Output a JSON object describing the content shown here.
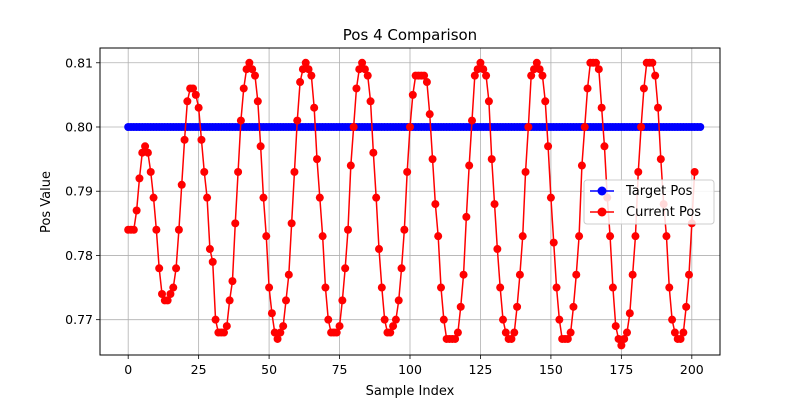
{
  "chart_data": {
    "type": "line",
    "title": "Pos 4 Comparison",
    "xlabel": "Sample Index",
    "ylabel": "Pos Value",
    "xlim": [
      -10,
      210
    ],
    "ylim": [
      0.7645,
      0.8123
    ],
    "x_ticks": [
      0,
      25,
      50,
      75,
      100,
      125,
      150,
      175,
      200
    ],
    "y_ticks": [
      0.77,
      0.78,
      0.79,
      0.8,
      0.81
    ],
    "y_tick_labels": [
      "0.77",
      "0.78",
      "0.79",
      "0.80",
      "0.81"
    ],
    "grid": true,
    "legend_position": "center-right",
    "x_count": 200,
    "series": [
      {
        "name": "Target Pos",
        "color": "#0000ff",
        "marker": "circle",
        "values": [
          0.8,
          0.8,
          0.8,
          0.8,
          0.8,
          0.8,
          0.8,
          0.8,
          0.8,
          0.8,
          0.8,
          0.8,
          0.8,
          0.8,
          0.8,
          0.8,
          0.8,
          0.8,
          0.8,
          0.8,
          0.8,
          0.8,
          0.8,
          0.8,
          0.8,
          0.8,
          0.8,
          0.8,
          0.8,
          0.8,
          0.8,
          0.8,
          0.8,
          0.8,
          0.8,
          0.8,
          0.8,
          0.8,
          0.8,
          0.8,
          0.8,
          0.8,
          0.8,
          0.8,
          0.8,
          0.8,
          0.8,
          0.8,
          0.8,
          0.8,
          0.8,
          0.8,
          0.8,
          0.8,
          0.8,
          0.8,
          0.8,
          0.8,
          0.8,
          0.8,
          0.8,
          0.8,
          0.8,
          0.8,
          0.8,
          0.8,
          0.8,
          0.8,
          0.8,
          0.8,
          0.8,
          0.8,
          0.8,
          0.8,
          0.8,
          0.8,
          0.8,
          0.8,
          0.8,
          0.8,
          0.8,
          0.8,
          0.8,
          0.8,
          0.8,
          0.8,
          0.8,
          0.8,
          0.8,
          0.8,
          0.8,
          0.8,
          0.8,
          0.8,
          0.8,
          0.8,
          0.8,
          0.8,
          0.8,
          0.8,
          0.8,
          0.8,
          0.8,
          0.8,
          0.8,
          0.8,
          0.8,
          0.8,
          0.8,
          0.8,
          0.8,
          0.8,
          0.8,
          0.8,
          0.8,
          0.8,
          0.8,
          0.8,
          0.8,
          0.8,
          0.8,
          0.8,
          0.8,
          0.8,
          0.8,
          0.8,
          0.8,
          0.8,
          0.8,
          0.8,
          0.8,
          0.8,
          0.8,
          0.8,
          0.8,
          0.8,
          0.8,
          0.8,
          0.8,
          0.8,
          0.8,
          0.8,
          0.8,
          0.8,
          0.8,
          0.8,
          0.8,
          0.8,
          0.8,
          0.8,
          0.8,
          0.8,
          0.8,
          0.8,
          0.8,
          0.8,
          0.8,
          0.8,
          0.8,
          0.8,
          0.8,
          0.8,
          0.8,
          0.8,
          0.8,
          0.8,
          0.8,
          0.8,
          0.8,
          0.8,
          0.8,
          0.8,
          0.8,
          0.8,
          0.8,
          0.8,
          0.8,
          0.8,
          0.8,
          0.8,
          0.8,
          0.8,
          0.8,
          0.8,
          0.8,
          0.8,
          0.8,
          0.8,
          0.8,
          0.8,
          0.8,
          0.8,
          0.8,
          0.8,
          0.8,
          0.8,
          0.8,
          0.8,
          0.8,
          0.8,
          0.8,
          0.8,
          0.8,
          0.8
        ]
      },
      {
        "name": "Current Pos",
        "color": "#ff0000",
        "marker": "circle",
        "values": [
          0.784,
          0.784,
          0.784,
          0.787,
          0.792,
          0.796,
          0.797,
          0.796,
          0.793,
          0.789,
          0.784,
          0.778,
          0.774,
          0.773,
          0.773,
          0.774,
          0.775,
          0.778,
          0.784,
          0.791,
          0.798,
          0.804,
          0.806,
          0.806,
          0.805,
          0.803,
          0.798,
          0.793,
          0.789,
          0.781,
          0.779,
          0.77,
          0.768,
          0.768,
          0.768,
          0.769,
          0.773,
          0.776,
          0.785,
          0.793,
          0.801,
          0.806,
          0.809,
          0.81,
          0.809,
          0.808,
          0.804,
          0.797,
          0.789,
          0.783,
          0.775,
          0.771,
          0.768,
          0.767,
          0.768,
          0.769,
          0.773,
          0.777,
          0.785,
          0.793,
          0.801,
          0.807,
          0.809,
          0.81,
          0.809,
          0.808,
          0.803,
          0.795,
          0.789,
          0.783,
          0.775,
          0.77,
          0.768,
          0.768,
          0.768,
          0.769,
          0.773,
          0.778,
          0.784,
          0.794,
          0.8,
          0.806,
          0.809,
          0.81,
          0.809,
          0.808,
          0.804,
          0.796,
          0.789,
          0.781,
          0.775,
          0.77,
          0.768,
          0.768,
          0.769,
          0.77,
          0.773,
          0.778,
          0.784,
          0.793,
          0.8,
          0.805,
          0.808,
          0.808,
          0.808,
          0.808,
          0.807,
          0.802,
          0.795,
          0.788,
          0.783,
          0.775,
          0.77,
          0.767,
          0.767,
          0.767,
          0.767,
          0.768,
          0.772,
          0.777,
          0.786,
          0.794,
          0.801,
          0.808,
          0.809,
          0.81,
          0.809,
          0.808,
          0.804,
          0.795,
          0.788,
          0.781,
          0.775,
          0.77,
          0.768,
          0.767,
          0.767,
          0.768,
          0.772,
          0.777,
          0.783,
          0.793,
          0.8,
          0.808,
          0.809,
          0.81,
          0.809,
          0.808,
          0.804,
          0.797,
          0.789,
          0.782,
          0.775,
          0.77,
          0.767,
          0.767,
          0.767,
          0.768,
          0.772,
          0.777,
          0.783,
          0.794,
          0.8,
          0.806,
          0.81,
          0.81,
          0.81,
          0.809,
          0.803,
          0.797,
          0.789,
          0.783,
          0.775,
          0.769,
          0.767,
          0.766,
          0.767,
          0.768,
          0.771,
          0.777,
          0.783,
          0.793,
          0.8,
          0.806,
          0.81,
          0.81,
          0.81,
          0.808,
          0.803,
          0.795,
          0.788,
          0.783,
          0.775,
          0.77,
          0.768,
          0.767,
          0.767,
          0.768,
          0.772,
          0.777,
          0.785,
          0.793
        ]
      }
    ]
  }
}
